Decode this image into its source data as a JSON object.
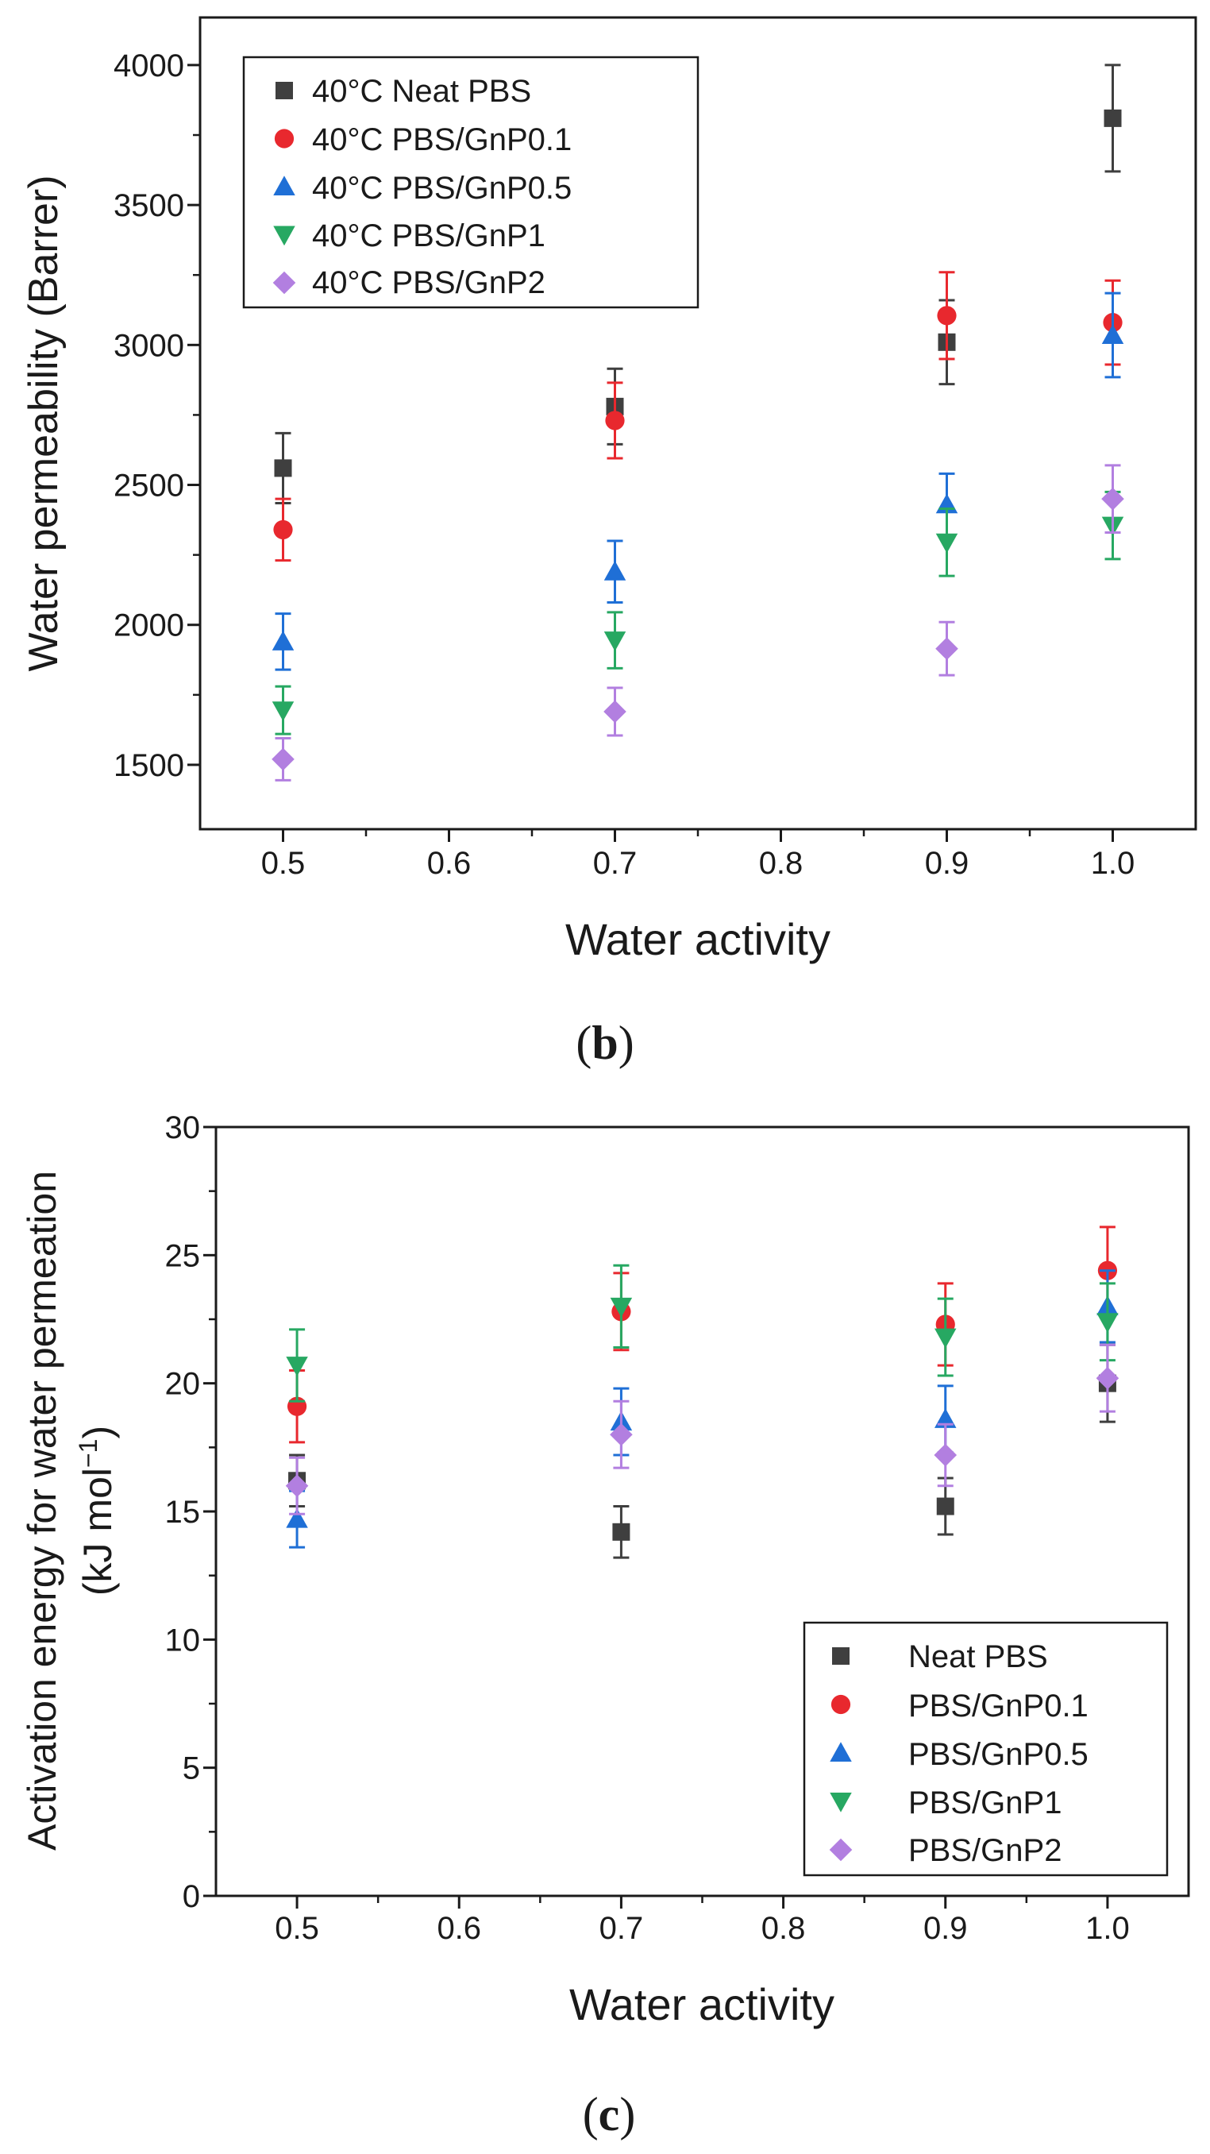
{
  "figure": {
    "panel_b_caption": "b",
    "panel_c_caption": "c"
  },
  "colors": {
    "neat": "#3f3f3f",
    "gnp01": "#e8282e",
    "gnp05": "#1f6fd6",
    "gnp1": "#27a862",
    "gnp2": "#b27fe0",
    "axis": "#1a1a1a"
  },
  "chart_data": [
    {
      "panel": "b",
      "type": "scatter",
      "title": "",
      "xlabel": "Water activity",
      "ylabel": "Water permeability (Barrer)",
      "xlim": [
        0.45,
        1.05
      ],
      "ylim": [
        1270,
        4170
      ],
      "x_ticks": [
        0.5,
        0.6,
        0.7,
        0.8,
        0.9,
        1.0
      ],
      "x_tick_labels": [
        "0.5",
        "0.6",
        "0.7",
        "0.8",
        "0.9",
        "1.0"
      ],
      "y_ticks": [
        1500,
        2000,
        2500,
        3000,
        3500,
        4000
      ],
      "y_tick_labels": [
        "1500",
        "2000",
        "2500",
        "3000",
        "3500",
        "4000"
      ],
      "legend_position": "top-left",
      "series": [
        {
          "name": "40°C Neat PBS",
          "marker": "square",
          "color": "#3f3f3f",
          "x": [
            0.5,
            0.7,
            0.9,
            1.0
          ],
          "y": [
            2560,
            2780,
            3010,
            3810
          ],
          "err": [
            125,
            135,
            150,
            190
          ]
        },
        {
          "name": "40°C PBS/GnP0.1",
          "marker": "circle",
          "color": "#e8282e",
          "x": [
            0.5,
            0.7,
            0.9,
            1.0
          ],
          "y": [
            2340,
            2730,
            3105,
            3080
          ],
          "err": [
            110,
            135,
            155,
            150
          ]
        },
        {
          "name": "40°C PBS/GnP0.5",
          "marker": "triangle-up",
          "color": "#1f6fd6",
          "x": [
            0.5,
            0.7,
            0.9,
            1.0
          ],
          "y": [
            1940,
            2190,
            2430,
            3035
          ],
          "err": [
            100,
            110,
            110,
            150
          ]
        },
        {
          "name": "40°C PBS/GnP1",
          "marker": "triangle-down",
          "color": "#27a862",
          "x": [
            0.5,
            0.7,
            0.9,
            1.0
          ],
          "y": [
            1695,
            1945,
            2295,
            2355
          ],
          "err": [
            85,
            100,
            120,
            120
          ]
        },
        {
          "name": "40°C PBS/GnP2",
          "marker": "diamond",
          "color": "#b27fe0",
          "x": [
            0.5,
            0.7,
            0.9,
            1.0
          ],
          "y": [
            1520,
            1690,
            1915,
            2450
          ],
          "err": [
            75,
            85,
            95,
            120
          ]
        }
      ]
    },
    {
      "panel": "c",
      "type": "scatter",
      "title": "",
      "xlabel": "Water activity",
      "ylabel": "Activation energy for water permeation",
      "ylabel_line2": "(kJ mol",
      "ylabel_sup": "−1",
      "ylabel_close": ")",
      "xlim": [
        0.45,
        1.05
      ],
      "ylim": [
        0,
        30
      ],
      "x_ticks": [
        0.5,
        0.6,
        0.7,
        0.8,
        0.9,
        1.0
      ],
      "x_tick_labels": [
        "0.5",
        "0.6",
        "0.7",
        "0.8",
        "0.9",
        "1.0"
      ],
      "y_ticks": [
        0,
        5,
        10,
        15,
        20,
        25,
        30
      ],
      "y_tick_labels": [
        "0",
        "5",
        "10",
        "15",
        "20",
        "25",
        "30"
      ],
      "legend_position": "bottom-right",
      "series": [
        {
          "name": "Neat PBS",
          "marker": "square",
          "color": "#3f3f3f",
          "x": [
            0.5,
            0.7,
            0.9,
            1.0
          ],
          "y": [
            16.2,
            14.2,
            15.2,
            20.0
          ],
          "err": [
            1.0,
            1.0,
            1.1,
            1.5
          ]
        },
        {
          "name": "PBS/GnP0.1",
          "marker": "circle",
          "color": "#e8282e",
          "x": [
            0.5,
            0.7,
            0.9,
            1.0
          ],
          "y": [
            19.1,
            22.8,
            22.3,
            24.4
          ],
          "err": [
            1.4,
            1.5,
            1.6,
            1.7
          ]
        },
        {
          "name": "PBS/GnP0.5",
          "marker": "triangle-up",
          "color": "#1f6fd6",
          "x": [
            0.5,
            0.7,
            0.9,
            1.0
          ],
          "y": [
            14.7,
            18.5,
            18.6,
            23.0
          ],
          "err": [
            1.1,
            1.3,
            1.3,
            1.4
          ]
        },
        {
          "name": "PBS/GnP1",
          "marker": "triangle-down",
          "color": "#27a862",
          "x": [
            0.5,
            0.7,
            0.9,
            1.0
          ],
          "y": [
            20.7,
            23.0,
            21.8,
            22.4
          ],
          "err": [
            1.4,
            1.6,
            1.5,
            1.5
          ]
        },
        {
          "name": "PBS/GnP2",
          "marker": "diamond",
          "color": "#b27fe0",
          "x": [
            0.5,
            0.7,
            0.9,
            1.0
          ],
          "y": [
            16.0,
            18.0,
            17.2,
            20.2
          ],
          "err": [
            1.1,
            1.3,
            1.2,
            1.3
          ]
        }
      ]
    }
  ]
}
